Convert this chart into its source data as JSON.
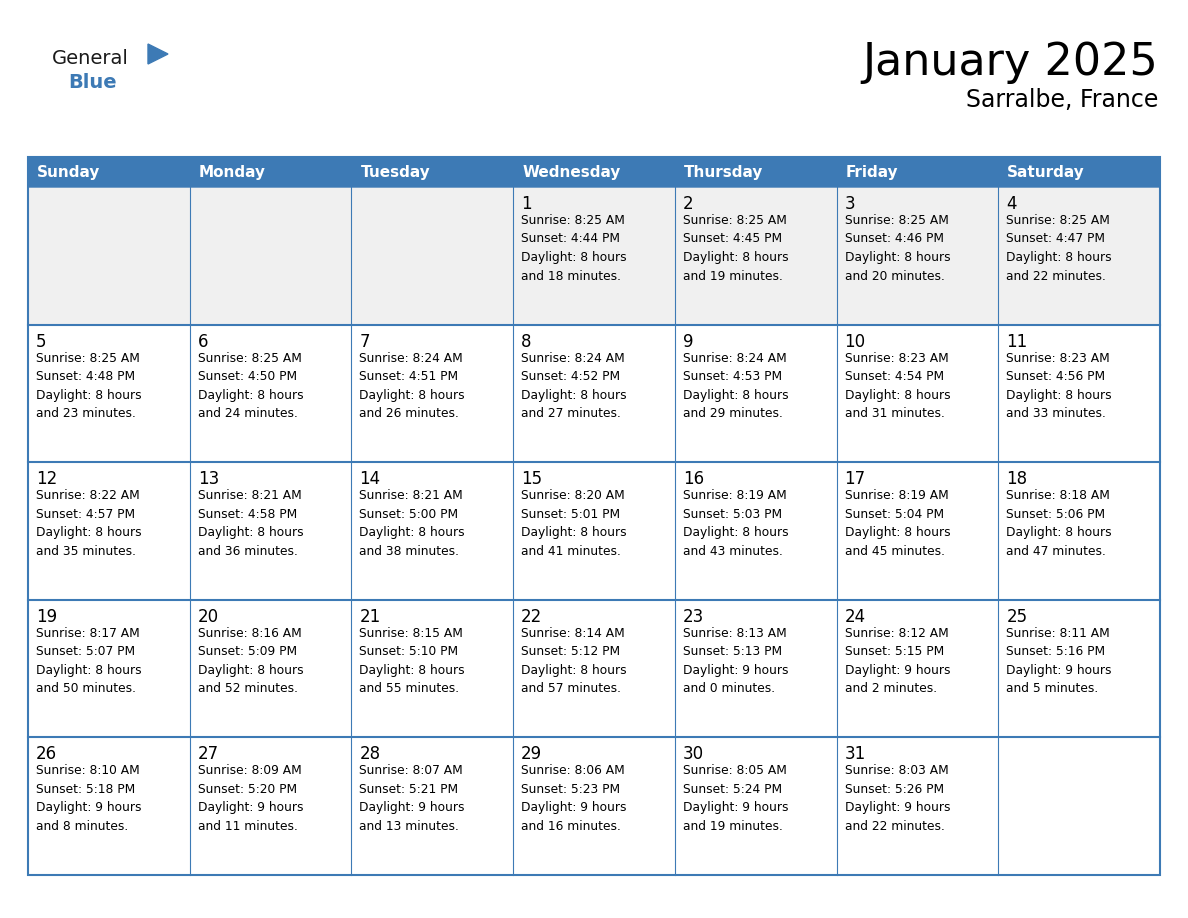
{
  "title": "January 2025",
  "subtitle": "Sarralbe, France",
  "header_color": "#3d7ab5",
  "header_text_color": "#FFFFFF",
  "cell_bg_white": "#FFFFFF",
  "cell_bg_gray": "#F0F0F0",
  "border_color": "#3d7ab5",
  "text_color": "#000000",
  "days_of_week": [
    "Sunday",
    "Monday",
    "Tuesday",
    "Wednesday",
    "Thursday",
    "Friday",
    "Saturday"
  ],
  "calendar_data": [
    [
      {
        "day": "",
        "info": ""
      },
      {
        "day": "",
        "info": ""
      },
      {
        "day": "",
        "info": ""
      },
      {
        "day": "1",
        "info": "Sunrise: 8:25 AM\nSunset: 4:44 PM\nDaylight: 8 hours\nand 18 minutes."
      },
      {
        "day": "2",
        "info": "Sunrise: 8:25 AM\nSunset: 4:45 PM\nDaylight: 8 hours\nand 19 minutes."
      },
      {
        "day": "3",
        "info": "Sunrise: 8:25 AM\nSunset: 4:46 PM\nDaylight: 8 hours\nand 20 minutes."
      },
      {
        "day": "4",
        "info": "Sunrise: 8:25 AM\nSunset: 4:47 PM\nDaylight: 8 hours\nand 22 minutes."
      }
    ],
    [
      {
        "day": "5",
        "info": "Sunrise: 8:25 AM\nSunset: 4:48 PM\nDaylight: 8 hours\nand 23 minutes."
      },
      {
        "day": "6",
        "info": "Sunrise: 8:25 AM\nSunset: 4:50 PM\nDaylight: 8 hours\nand 24 minutes."
      },
      {
        "day": "7",
        "info": "Sunrise: 8:24 AM\nSunset: 4:51 PM\nDaylight: 8 hours\nand 26 minutes."
      },
      {
        "day": "8",
        "info": "Sunrise: 8:24 AM\nSunset: 4:52 PM\nDaylight: 8 hours\nand 27 minutes."
      },
      {
        "day": "9",
        "info": "Sunrise: 8:24 AM\nSunset: 4:53 PM\nDaylight: 8 hours\nand 29 minutes."
      },
      {
        "day": "10",
        "info": "Sunrise: 8:23 AM\nSunset: 4:54 PM\nDaylight: 8 hours\nand 31 minutes."
      },
      {
        "day": "11",
        "info": "Sunrise: 8:23 AM\nSunset: 4:56 PM\nDaylight: 8 hours\nand 33 minutes."
      }
    ],
    [
      {
        "day": "12",
        "info": "Sunrise: 8:22 AM\nSunset: 4:57 PM\nDaylight: 8 hours\nand 35 minutes."
      },
      {
        "day": "13",
        "info": "Sunrise: 8:21 AM\nSunset: 4:58 PM\nDaylight: 8 hours\nand 36 minutes."
      },
      {
        "day": "14",
        "info": "Sunrise: 8:21 AM\nSunset: 5:00 PM\nDaylight: 8 hours\nand 38 minutes."
      },
      {
        "day": "15",
        "info": "Sunrise: 8:20 AM\nSunset: 5:01 PM\nDaylight: 8 hours\nand 41 minutes."
      },
      {
        "day": "16",
        "info": "Sunrise: 8:19 AM\nSunset: 5:03 PM\nDaylight: 8 hours\nand 43 minutes."
      },
      {
        "day": "17",
        "info": "Sunrise: 8:19 AM\nSunset: 5:04 PM\nDaylight: 8 hours\nand 45 minutes."
      },
      {
        "day": "18",
        "info": "Sunrise: 8:18 AM\nSunset: 5:06 PM\nDaylight: 8 hours\nand 47 minutes."
      }
    ],
    [
      {
        "day": "19",
        "info": "Sunrise: 8:17 AM\nSunset: 5:07 PM\nDaylight: 8 hours\nand 50 minutes."
      },
      {
        "day": "20",
        "info": "Sunrise: 8:16 AM\nSunset: 5:09 PM\nDaylight: 8 hours\nand 52 minutes."
      },
      {
        "day": "21",
        "info": "Sunrise: 8:15 AM\nSunset: 5:10 PM\nDaylight: 8 hours\nand 55 minutes."
      },
      {
        "day": "22",
        "info": "Sunrise: 8:14 AM\nSunset: 5:12 PM\nDaylight: 8 hours\nand 57 minutes."
      },
      {
        "day": "23",
        "info": "Sunrise: 8:13 AM\nSunset: 5:13 PM\nDaylight: 9 hours\nand 0 minutes."
      },
      {
        "day": "24",
        "info": "Sunrise: 8:12 AM\nSunset: 5:15 PM\nDaylight: 9 hours\nand 2 minutes."
      },
      {
        "day": "25",
        "info": "Sunrise: 8:11 AM\nSunset: 5:16 PM\nDaylight: 9 hours\nand 5 minutes."
      }
    ],
    [
      {
        "day": "26",
        "info": "Sunrise: 8:10 AM\nSunset: 5:18 PM\nDaylight: 9 hours\nand 8 minutes."
      },
      {
        "day": "27",
        "info": "Sunrise: 8:09 AM\nSunset: 5:20 PM\nDaylight: 9 hours\nand 11 minutes."
      },
      {
        "day": "28",
        "info": "Sunrise: 8:07 AM\nSunset: 5:21 PM\nDaylight: 9 hours\nand 13 minutes."
      },
      {
        "day": "29",
        "info": "Sunrise: 8:06 AM\nSunset: 5:23 PM\nDaylight: 9 hours\nand 16 minutes."
      },
      {
        "day": "30",
        "info": "Sunrise: 8:05 AM\nSunset: 5:24 PM\nDaylight: 9 hours\nand 19 minutes."
      },
      {
        "day": "31",
        "info": "Sunrise: 8:03 AM\nSunset: 5:26 PM\nDaylight: 9 hours\nand 22 minutes."
      },
      {
        "day": "",
        "info": ""
      }
    ]
  ],
  "logo_general_color": "#1a1a1a",
  "logo_blue_color": "#3d7ab5",
  "logo_triangle_color": "#3d7ab5"
}
